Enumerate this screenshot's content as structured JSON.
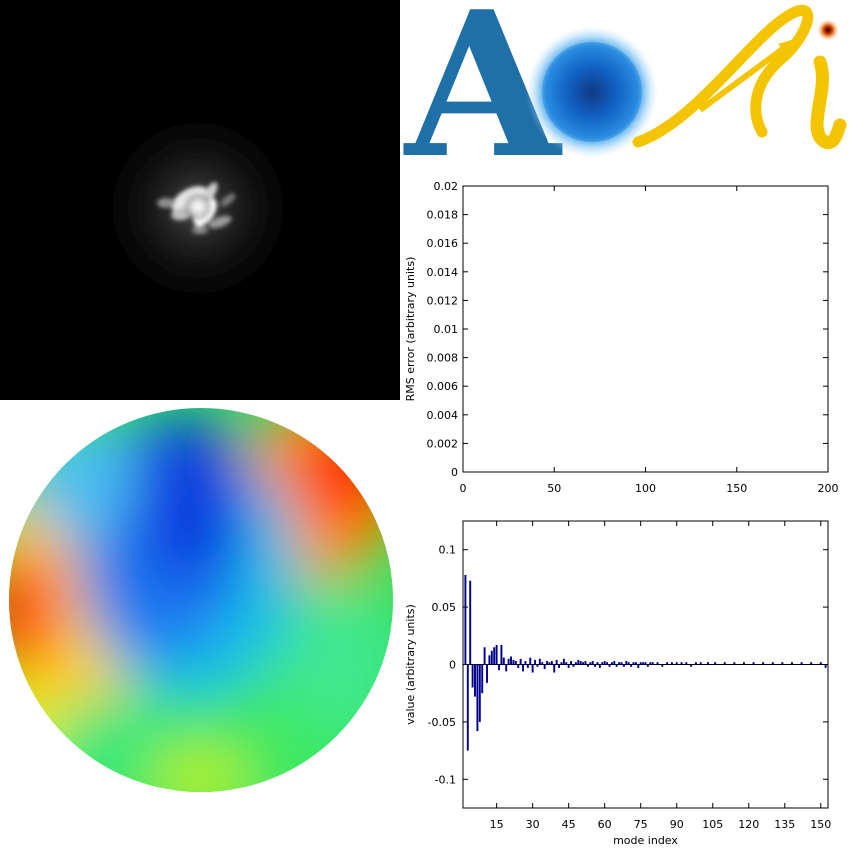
{
  "logo": {
    "letter_a": "A",
    "letter_l": "l",
    "letter_i": "i",
    "colors": {
      "blue": "#1f6fa8",
      "yellow": "#f5c400"
    }
  },
  "psf_image": {
    "icon": "psf-camera-image",
    "background": "#000000"
  },
  "wavefront_map": {
    "icon": "wavefront-phase-map",
    "colormap": "jet"
  },
  "chart_data": [
    {
      "type": "line",
      "title": "",
      "xlabel": "",
      "ylabel": "RMS error (arbitrary units)",
      "xlim": [
        0,
        200
      ],
      "ylim": [
        0,
        0.02
      ],
      "x_ticks": [
        "0",
        "50",
        "100",
        "150",
        "200"
      ],
      "y_ticks": [
        "0",
        "0.002",
        "0.004",
        "0.006",
        "0.008",
        "0.01",
        "0.012",
        "0.014",
        "0.016",
        "0.018",
        "0.02"
      ],
      "series": [],
      "grid": false
    },
    {
      "type": "bar",
      "title": "",
      "xlabel": "mode index",
      "ylabel": "value (arbitrary units)",
      "xlim": [
        1,
        153
      ],
      "ylim": [
        -0.125,
        0.125
      ],
      "x_ticks": [
        "15",
        "30",
        "45",
        "60",
        "75",
        "90",
        "105",
        "120",
        "135",
        "150"
      ],
      "y_ticks": [
        "0.1",
        "0.05",
        "0",
        "-0.05",
        "-0.1"
      ],
      "color": "#00008b",
      "x": [
        2,
        3,
        4,
        5,
        6,
        7,
        8,
        9,
        10,
        11,
        12,
        13,
        14,
        15,
        16,
        17,
        18,
        19,
        20,
        21,
        22,
        23,
        24,
        25,
        26,
        27,
        28,
        29,
        30,
        31,
        32,
        33,
        34,
        35,
        36,
        37,
        38,
        39,
        40,
        41,
        42,
        43,
        44,
        45,
        46,
        47,
        48,
        49,
        50,
        51,
        52,
        53,
        54,
        55,
        56,
        57,
        58,
        59,
        60,
        61,
        62,
        63,
        64,
        65,
        66,
        67,
        68,
        69,
        70,
        71,
        72,
        73,
        74,
        75,
        76,
        77,
        78,
        79,
        80,
        82,
        84,
        86,
        88,
        90,
        92,
        94,
        96,
        98,
        100,
        103,
        106,
        110,
        114,
        118,
        122,
        126,
        130,
        134,
        138,
        142,
        146,
        150,
        152
      ],
      "values": [
        0.078,
        -0.075,
        0.073,
        -0.02,
        -0.028,
        -0.058,
        -0.05,
        -0.025,
        0.015,
        -0.016,
        0.008,
        0.012,
        0.015,
        0.017,
        -0.005,
        0.017,
        0.006,
        -0.006,
        0.005,
        0.007,
        0.004,
        0.003,
        -0.003,
        0.005,
        -0.006,
        0.003,
        -0.003,
        0.006,
        -0.007,
        0.004,
        -0.002,
        0.005,
        0.002,
        -0.004,
        0.003,
        0.002,
        0.003,
        -0.007,
        0.004,
        -0.003,
        0.002,
        0.005,
        0.002,
        -0.003,
        0.003,
        -0.002,
        0.002,
        0.004,
        0.003,
        0.002,
        0.003,
        -0.002,
        0.002,
        0.003,
        -0.002,
        0.002,
        -0.003,
        0.002,
        0.003,
        0.002,
        -0.002,
        0.002,
        0.003,
        -0.002,
        0.002,
        0.002,
        -0.002,
        0.003,
        0.002,
        -0.002,
        0.002,
        0.002,
        -0.003,
        0.002,
        0.002,
        0.002,
        -0.002,
        0.002,
        0.002,
        0.002,
        -0.002,
        0.002,
        0.002,
        0.002,
        0.002,
        0.002,
        -0.002,
        0.002,
        0.002,
        0.002,
        0.002,
        0.002,
        0.002,
        0.002,
        0.002,
        0.002,
        0.002,
        0.002,
        0.002,
        0.002,
        0.002,
        0.002,
        -0.003
      ]
    }
  ]
}
